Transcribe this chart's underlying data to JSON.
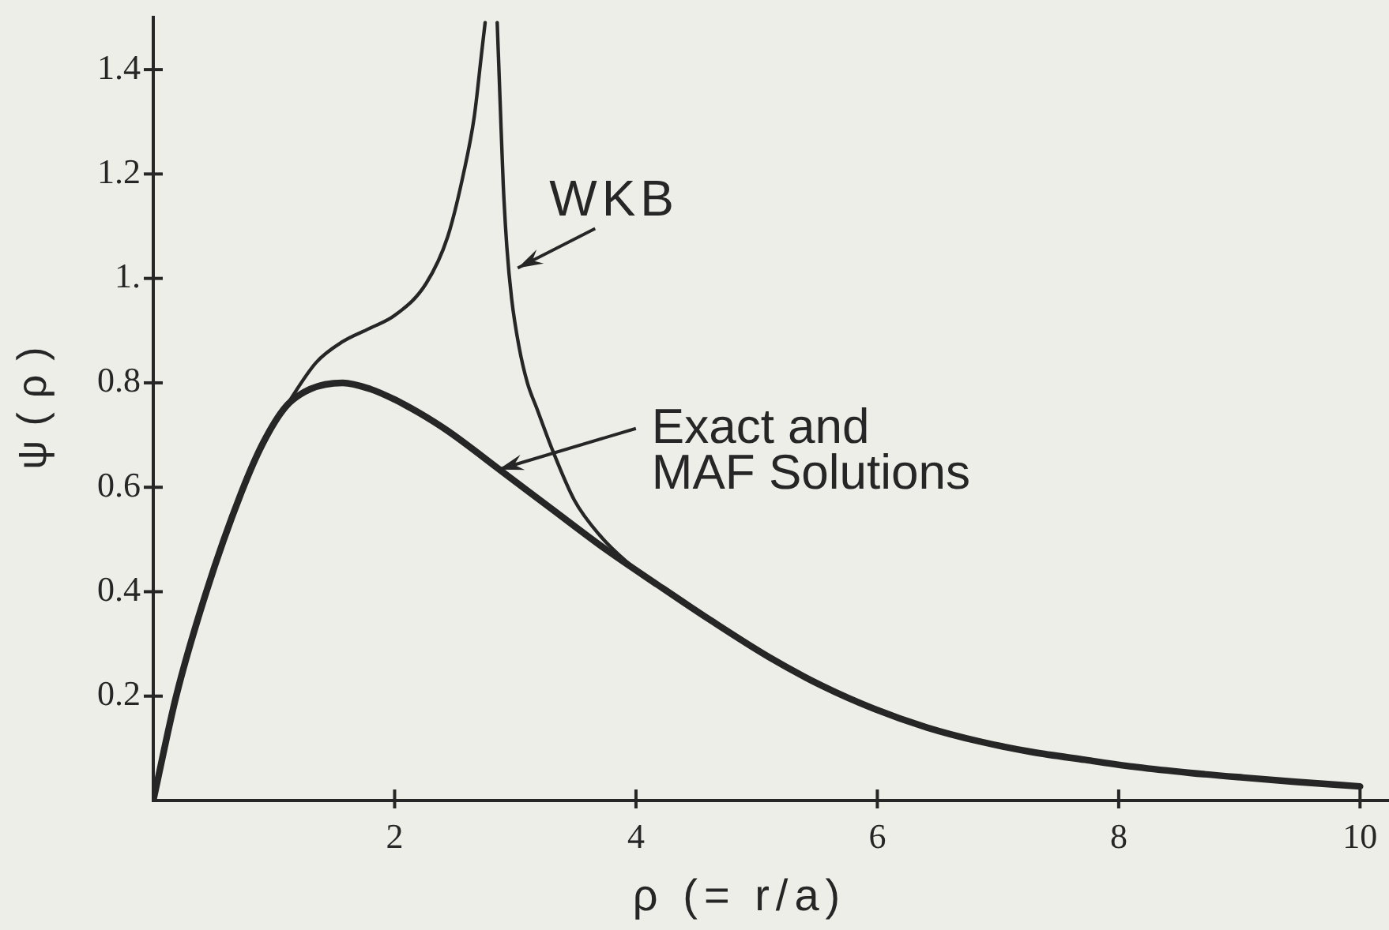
{
  "chart_data": {
    "type": "line",
    "xlabel": "ρ (= r/a)",
    "ylabel": "ψ(ρ)",
    "xlim": [
      0,
      10.24
    ],
    "ylim": [
      0,
      1.5
    ],
    "xticks": [
      2,
      4,
      6,
      8,
      10
    ],
    "yticks": [
      0.2,
      0.4,
      0.6,
      0.8,
      {
        "value": 1,
        "label": "1."
      },
      1.2,
      1.4
    ],
    "grid": false,
    "legend": false,
    "marker": "none",
    "line_style": "solid",
    "series": [
      {
        "color": "#262626",
        "x": [
          0,
          0.19,
          0.44,
          0.73,
          0.91,
          1.1,
          1.3,
          1.57,
          1.8,
          2,
          2.2,
          2.44,
          2.88,
          3.31,
          3.75,
          4.18,
          4.62,
          5.1,
          5.54,
          5.97,
          6.41,
          6.85,
          7.28,
          7.72,
          8.15,
          8.59,
          9.03,
          9.46,
          10
        ],
        "values": [
          0,
          0.2,
          0.4,
          0.59,
          0.685,
          0.755,
          0.788,
          0.8,
          0.788,
          0.768,
          0.743,
          0.708,
          0.632,
          0.557,
          0.481,
          0.413,
          0.345,
          0.275,
          0.22,
          0.176,
          0.14,
          0.113,
          0.093,
          0.078,
          0.064,
          0.053,
          0.044,
          0.036,
          0.027
        ]
      },
      {
        "color": "#262626",
        "x": [
          0,
          0.19,
          0.44,
          0.73,
          0.91,
          1.1,
          1.35,
          1.57,
          1.79,
          2,
          2.26,
          2.44,
          2.57,
          2.66,
          2.72,
          2.75,
          2.8,
          2.85,
          2.875,
          2.9,
          2.93,
          2.97,
          3.03,
          3.1,
          3.18,
          3.31,
          3.49,
          3.7,
          3.92,
          4.14,
          4.62,
          5.1,
          5.54,
          5.97,
          6.41,
          6.85,
          7.28,
          7.72,
          8.15,
          8.59,
          9.03,
          9.46,
          10
        ],
        "values": [
          0,
          0.2,
          0.4,
          0.59,
          0.685,
          0.755,
          0.839,
          0.879,
          0.904,
          0.929,
          0.99,
          1.08,
          1.2,
          1.31,
          1.43,
          1.49,
          null,
          1.49,
          1.333,
          1.18,
          1.06,
          0.96,
          0.87,
          0.8,
          0.75,
          0.67,
          0.575,
          0.508,
          0.458,
          0.42,
          0.345,
          0.275,
          0.22,
          0.176,
          0.14,
          0.113,
          0.093,
          0.078,
          0.064,
          0.053,
          0.044,
          0.036,
          0.027
        ]
      }
    ],
    "annotations": [
      {
        "text": "WKB",
        "x": 3.02,
        "y": 1.02
      },
      {
        "text": "Exact and\nMAF Solutions",
        "x": 2.86,
        "y": 0.634
      }
    ]
  }
}
